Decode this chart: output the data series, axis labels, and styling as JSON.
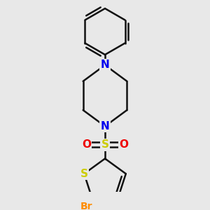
{
  "background_color": "#e8e8e8",
  "bond_color": "#111111",
  "bond_width": 1.8,
  "atom_colors": {
    "N": "#0000EE",
    "S_sulfonyl": "#CCCC00",
    "O": "#EE0000",
    "S_thio": "#CCCC00",
    "Br": "#FF8C00",
    "C": "#111111"
  },
  "font_size_N": 11,
  "font_size_S": 11,
  "font_size_O": 11,
  "font_size_Br": 10
}
